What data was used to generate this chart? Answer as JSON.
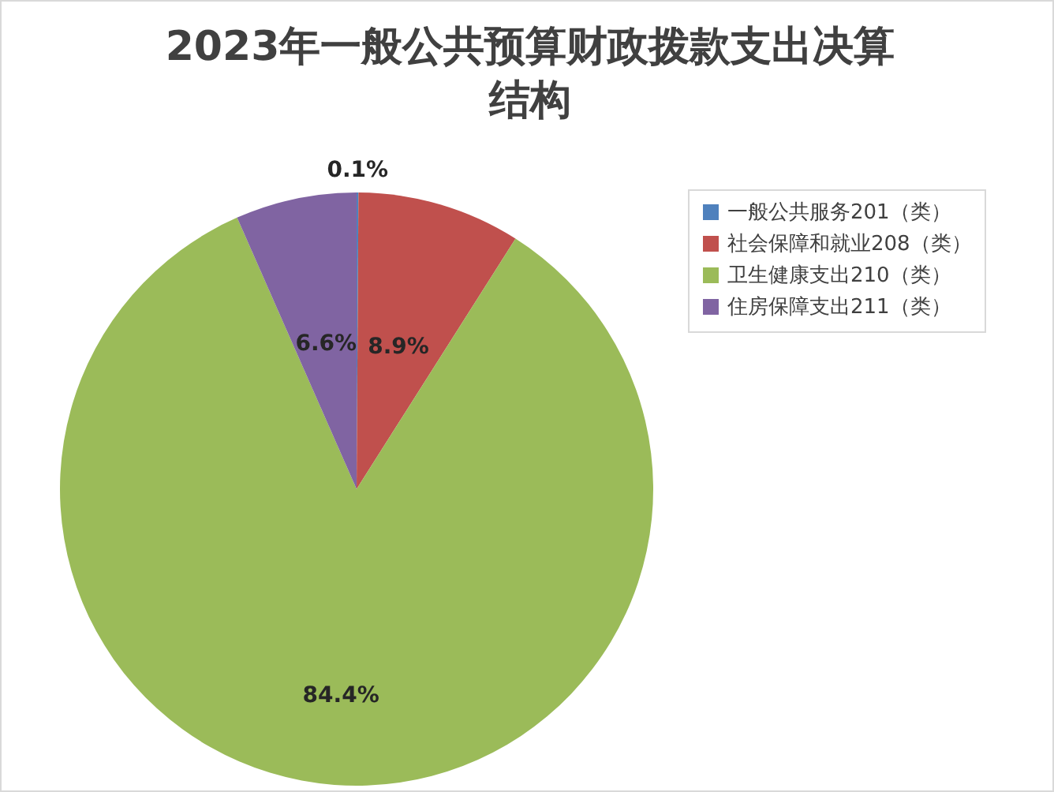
{
  "chart_data": {
    "type": "pie",
    "title": "2023年一般公共预算财政拨款支出决算结构",
    "categories": [
      "一般公共服务201（类）",
      "社会保障和就业208（类）",
      "卫生健康支出210（类）",
      "住房保障支出211（类）"
    ],
    "values": [
      0.1,
      8.9,
      84.4,
      6.6
    ],
    "colors": [
      "#4f81bd",
      "#c0504d",
      "#9bbb59",
      "#8064a2"
    ],
    "value_labels": [
      "0.1%",
      "8.9%",
      "84.4%",
      "6.6%"
    ],
    "legend": "right"
  }
}
